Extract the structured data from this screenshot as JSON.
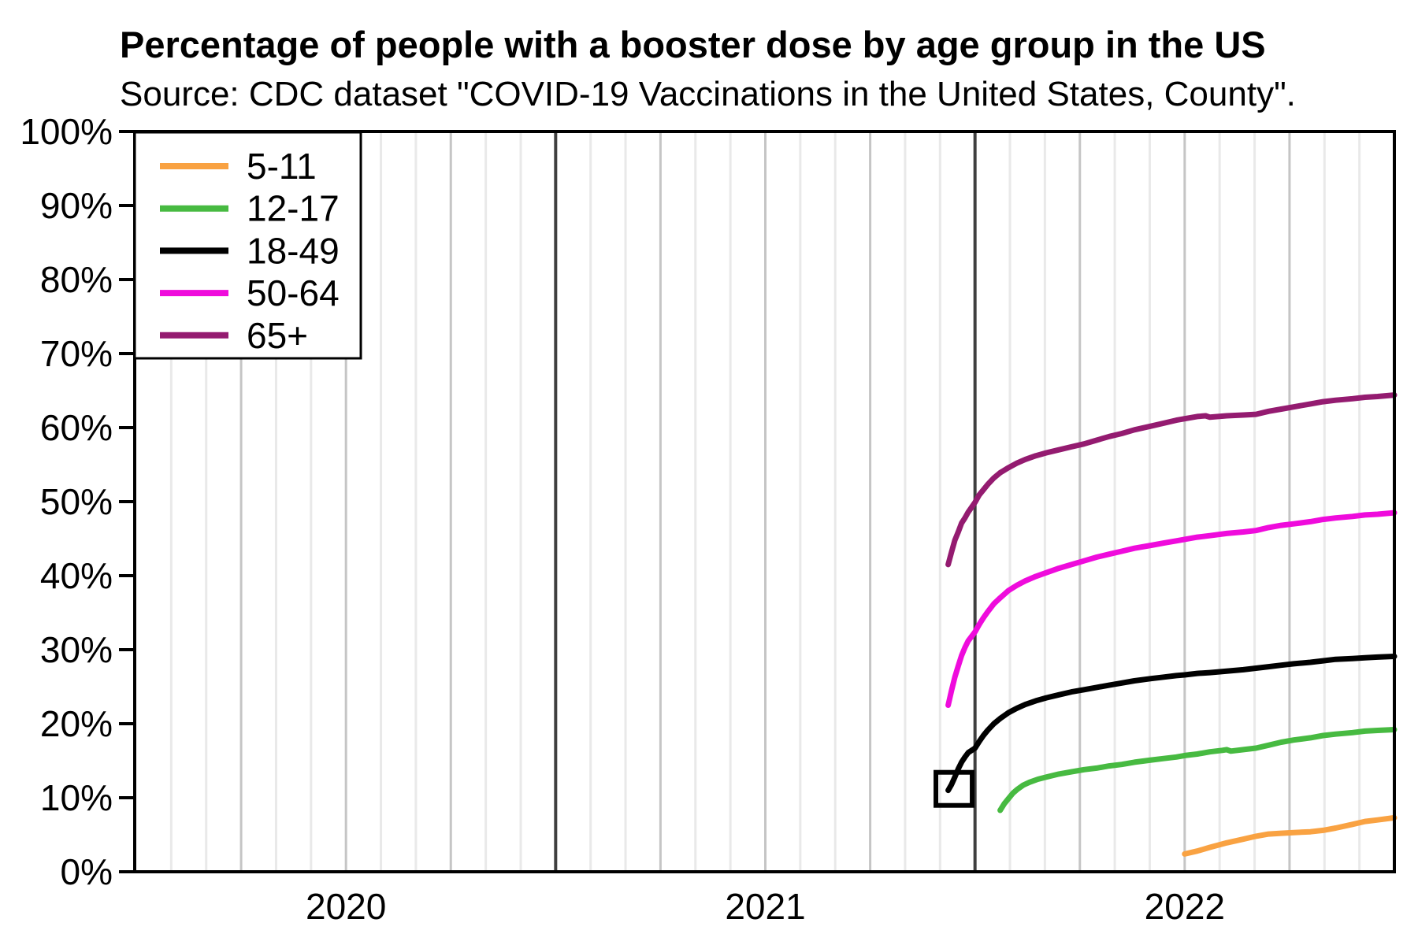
{
  "chart_data": {
    "type": "line",
    "title": "Percentage of people with a booster dose by age group in the US",
    "subtitle": "Source: CDC dataset \"COVID-19 Vaccinations in the United States, County\".",
    "background_color": "#ffffff",
    "axis_color": "#000000",
    "grid": {
      "month_color": "#e9e9e9",
      "quarter_color": "#c5c5c5",
      "year_color": "#3f3f3f",
      "horizontal_gridlines": false
    },
    "x_axis": {
      "range": [
        2020.0,
        2023.0
      ],
      "unit": "year",
      "gridline_interval": "month",
      "ticks": [
        {
          "value": 2020.5,
          "label": "2020"
        },
        {
          "value": 2021.5,
          "label": "2021"
        },
        {
          "value": 2022.5,
          "label": "2022"
        }
      ]
    },
    "y_axis": {
      "range": [
        0,
        100
      ],
      "tick_step": 10,
      "ticks": [
        {
          "value": 0,
          "label": "0%"
        },
        {
          "value": 10,
          "label": "10%"
        },
        {
          "value": 20,
          "label": "20%"
        },
        {
          "value": 30,
          "label": "30%"
        },
        {
          "value": 40,
          "label": "40%"
        },
        {
          "value": 50,
          "label": "50%"
        },
        {
          "value": 60,
          "label": "60%"
        },
        {
          "value": 70,
          "label": "70%"
        },
        {
          "value": 80,
          "label": "80%"
        },
        {
          "value": 90,
          "label": "90%"
        },
        {
          "value": 100,
          "label": "100%"
        }
      ]
    },
    "legend": {
      "position": "top-left",
      "entries": [
        {
          "label": "5-11",
          "color": "#F9A242"
        },
        {
          "label": "12-17",
          "color": "#47BA41"
        },
        {
          "label": "18-49",
          "color": "#000000"
        },
        {
          "label": "50-64",
          "color": "#EF0BDC"
        },
        {
          "label": "65+",
          "color": "#941B70"
        }
      ]
    },
    "annotation": {
      "shape": "open-square",
      "x": 2021.95,
      "y": 11.2,
      "color": "#000000",
      "note": "black square highlighting the start of the 18-49 series"
    },
    "series": [
      {
        "name": "5-11",
        "color": "#F9A242",
        "points": [
          [
            2022.5,
            2.4
          ],
          [
            2022.53,
            2.8
          ],
          [
            2022.56,
            3.3
          ],
          [
            2022.6,
            3.9
          ],
          [
            2022.64,
            4.4
          ],
          [
            2022.67,
            4.8
          ],
          [
            2022.7,
            5.1
          ],
          [
            2022.73,
            5.2
          ],
          [
            2022.76,
            5.3
          ],
          [
            2022.8,
            5.4
          ],
          [
            2022.83,
            5.6
          ],
          [
            2022.86,
            5.9
          ],
          [
            2022.9,
            6.4
          ],
          [
            2022.93,
            6.8
          ],
          [
            2022.96,
            7.0
          ],
          [
            2023.0,
            7.3
          ]
        ]
      },
      {
        "name": "12-17",
        "color": "#47BA41",
        "points": [
          [
            2022.06,
            8.3
          ],
          [
            2022.07,
            9.2
          ],
          [
            2022.08,
            9.9
          ],
          [
            2022.09,
            10.6
          ],
          [
            2022.1,
            11.1
          ],
          [
            2022.115,
            11.7
          ],
          [
            2022.13,
            12.1
          ],
          [
            2022.15,
            12.5
          ],
          [
            2022.17,
            12.8
          ],
          [
            2022.2,
            13.2
          ],
          [
            2022.23,
            13.5
          ],
          [
            2022.26,
            13.8
          ],
          [
            2022.29,
            14.0
          ],
          [
            2022.32,
            14.3
          ],
          [
            2022.35,
            14.5
          ],
          [
            2022.38,
            14.8
          ],
          [
            2022.42,
            15.1
          ],
          [
            2022.45,
            15.3
          ],
          [
            2022.48,
            15.5
          ],
          [
            2022.5,
            15.7
          ],
          [
            2022.53,
            15.9
          ],
          [
            2022.56,
            16.2
          ],
          [
            2022.59,
            16.4
          ],
          [
            2022.6,
            16.5
          ],
          [
            2022.61,
            16.3
          ],
          [
            2022.64,
            16.5
          ],
          [
            2022.67,
            16.7
          ],
          [
            2022.7,
            17.1
          ],
          [
            2022.73,
            17.5
          ],
          [
            2022.76,
            17.8
          ],
          [
            2022.8,
            18.1
          ],
          [
            2022.83,
            18.4
          ],
          [
            2022.86,
            18.6
          ],
          [
            2022.9,
            18.8
          ],
          [
            2022.93,
            19.0
          ],
          [
            2022.96,
            19.1
          ],
          [
            2023.0,
            19.2
          ]
        ]
      },
      {
        "name": "18-49",
        "color": "#000000",
        "points": [
          [
            2021.936,
            11.0
          ],
          [
            2021.944,
            11.8
          ],
          [
            2021.952,
            12.8
          ],
          [
            2021.96,
            13.9
          ],
          [
            2021.968,
            14.8
          ],
          [
            2021.976,
            15.5
          ],
          [
            2021.984,
            16.1
          ],
          [
            2022.0,
            16.7
          ],
          [
            2022.01,
            17.6
          ],
          [
            2022.02,
            18.4
          ],
          [
            2022.03,
            19.1
          ],
          [
            2022.045,
            20.0
          ],
          [
            2022.06,
            20.7
          ],
          [
            2022.08,
            21.5
          ],
          [
            2022.1,
            22.1
          ],
          [
            2022.12,
            22.6
          ],
          [
            2022.145,
            23.1
          ],
          [
            2022.17,
            23.5
          ],
          [
            2022.2,
            23.9
          ],
          [
            2022.23,
            24.3
          ],
          [
            2022.26,
            24.6
          ],
          [
            2022.29,
            24.9
          ],
          [
            2022.32,
            25.2
          ],
          [
            2022.35,
            25.5
          ],
          [
            2022.38,
            25.8
          ],
          [
            2022.42,
            26.1
          ],
          [
            2022.45,
            26.3
          ],
          [
            2022.48,
            26.5
          ],
          [
            2022.5,
            26.6
          ],
          [
            2022.53,
            26.8
          ],
          [
            2022.56,
            26.9
          ],
          [
            2022.6,
            27.1
          ],
          [
            2022.64,
            27.3
          ],
          [
            2022.67,
            27.5
          ],
          [
            2022.7,
            27.7
          ],
          [
            2022.73,
            27.9
          ],
          [
            2022.76,
            28.1
          ],
          [
            2022.8,
            28.3
          ],
          [
            2022.83,
            28.5
          ],
          [
            2022.86,
            28.7
          ],
          [
            2022.9,
            28.8
          ],
          [
            2022.93,
            28.9
          ],
          [
            2022.96,
            29.0
          ],
          [
            2023.0,
            29.1
          ]
        ]
      },
      {
        "name": "50-64",
        "color": "#EF0BDC",
        "points": [
          [
            2021.936,
            22.5
          ],
          [
            2021.944,
            24.5
          ],
          [
            2021.952,
            26.3
          ],
          [
            2021.96,
            27.8
          ],
          [
            2021.968,
            29.2
          ],
          [
            2021.976,
            30.3
          ],
          [
            2021.984,
            31.2
          ],
          [
            2022.0,
            32.4
          ],
          [
            2022.01,
            33.4
          ],
          [
            2022.02,
            34.3
          ],
          [
            2022.03,
            35.1
          ],
          [
            2022.045,
            36.2
          ],
          [
            2022.06,
            37.0
          ],
          [
            2022.08,
            38.0
          ],
          [
            2022.1,
            38.7
          ],
          [
            2022.12,
            39.3
          ],
          [
            2022.145,
            39.9
          ],
          [
            2022.17,
            40.4
          ],
          [
            2022.2,
            41.0
          ],
          [
            2022.23,
            41.5
          ],
          [
            2022.26,
            42.0
          ],
          [
            2022.29,
            42.5
          ],
          [
            2022.32,
            42.9
          ],
          [
            2022.35,
            43.3
          ],
          [
            2022.38,
            43.7
          ],
          [
            2022.42,
            44.1
          ],
          [
            2022.45,
            44.4
          ],
          [
            2022.48,
            44.7
          ],
          [
            2022.5,
            44.9
          ],
          [
            2022.53,
            45.2
          ],
          [
            2022.56,
            45.4
          ],
          [
            2022.6,
            45.7
          ],
          [
            2022.64,
            45.9
          ],
          [
            2022.67,
            46.1
          ],
          [
            2022.7,
            46.5
          ],
          [
            2022.73,
            46.8
          ],
          [
            2022.76,
            47.0
          ],
          [
            2022.8,
            47.3
          ],
          [
            2022.83,
            47.6
          ],
          [
            2022.86,
            47.8
          ],
          [
            2022.9,
            48.0
          ],
          [
            2022.93,
            48.2
          ],
          [
            2022.96,
            48.3
          ],
          [
            2023.0,
            48.5
          ]
        ]
      },
      {
        "name": "65+",
        "color": "#941B70",
        "points": [
          [
            2021.936,
            41.5
          ],
          [
            2021.944,
            43.2
          ],
          [
            2021.952,
            44.8
          ],
          [
            2021.96,
            45.9
          ],
          [
            2021.968,
            47.1
          ],
          [
            2021.976,
            47.8
          ],
          [
            2021.984,
            48.6
          ],
          [
            2022.0,
            49.9
          ],
          [
            2022.01,
            50.9
          ],
          [
            2022.02,
            51.6
          ],
          [
            2022.03,
            52.3
          ],
          [
            2022.045,
            53.2
          ],
          [
            2022.06,
            53.9
          ],
          [
            2022.08,
            54.6
          ],
          [
            2022.1,
            55.2
          ],
          [
            2022.12,
            55.7
          ],
          [
            2022.145,
            56.2
          ],
          [
            2022.17,
            56.6
          ],
          [
            2022.2,
            57.0
          ],
          [
            2022.23,
            57.4
          ],
          [
            2022.26,
            57.8
          ],
          [
            2022.29,
            58.3
          ],
          [
            2022.32,
            58.8
          ],
          [
            2022.35,
            59.2
          ],
          [
            2022.38,
            59.7
          ],
          [
            2022.42,
            60.2
          ],
          [
            2022.45,
            60.6
          ],
          [
            2022.48,
            61.0
          ],
          [
            2022.5,
            61.2
          ],
          [
            2022.53,
            61.5
          ],
          [
            2022.55,
            61.6
          ],
          [
            2022.56,
            61.4
          ],
          [
            2022.6,
            61.6
          ],
          [
            2022.64,
            61.7
          ],
          [
            2022.67,
            61.8
          ],
          [
            2022.7,
            62.2
          ],
          [
            2022.73,
            62.5
          ],
          [
            2022.76,
            62.8
          ],
          [
            2022.8,
            63.2
          ],
          [
            2022.83,
            63.5
          ],
          [
            2022.86,
            63.7
          ],
          [
            2022.9,
            63.9
          ],
          [
            2022.93,
            64.1
          ],
          [
            2022.96,
            64.2
          ],
          [
            2023.0,
            64.4
          ]
        ]
      }
    ]
  }
}
